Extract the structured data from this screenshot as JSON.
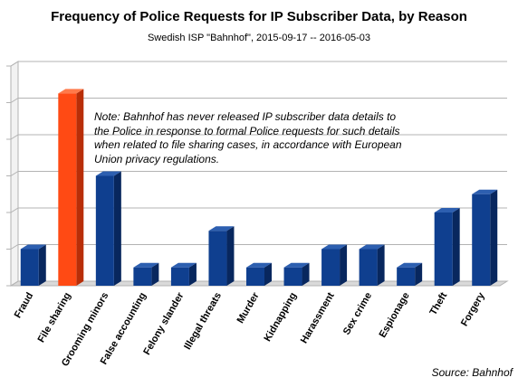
{
  "chart_data": {
    "type": "bar",
    "title": "Frequency of Police Requests for IP Subscriber Data, by Reason",
    "subtitle": "Swedish ISP \"Bahnhof\", 2015-09-17 -- 2016-05-03",
    "categories": [
      "Fraud",
      "File sharing",
      "Grooming minors",
      "False accounting",
      "Felony slander",
      "Illegal threats",
      "Murder",
      "Kidnapping",
      "Harassment",
      "Sex crime",
      "Espionage",
      "Theft",
      "Forgery"
    ],
    "values": [
      2,
      10.5,
      6,
      1,
      1,
      3,
      1,
      1,
      2,
      2,
      1,
      4,
      5
    ],
    "highlight_index": 1,
    "colors": {
      "bar": "#0f3f8f",
      "bar_side": "#08275e",
      "bar_top": "#2d5fb0",
      "highlight": "#ff4a14",
      "highlight_side": "#b82e08",
      "highlight_top": "#ff7a4a",
      "grid": "#b3b3b3"
    },
    "ylim": [
      0,
      12
    ],
    "ytick_step": 2,
    "yticklabels_visible": false,
    "grid": true,
    "annotation": "Note: Bahnhof has never released IP subscriber data details to the Police in response to formal Police requests for such details when related to file sharing cases, in accordance with European Union privacy regulations.",
    "source": "Source: Bahnhof"
  }
}
